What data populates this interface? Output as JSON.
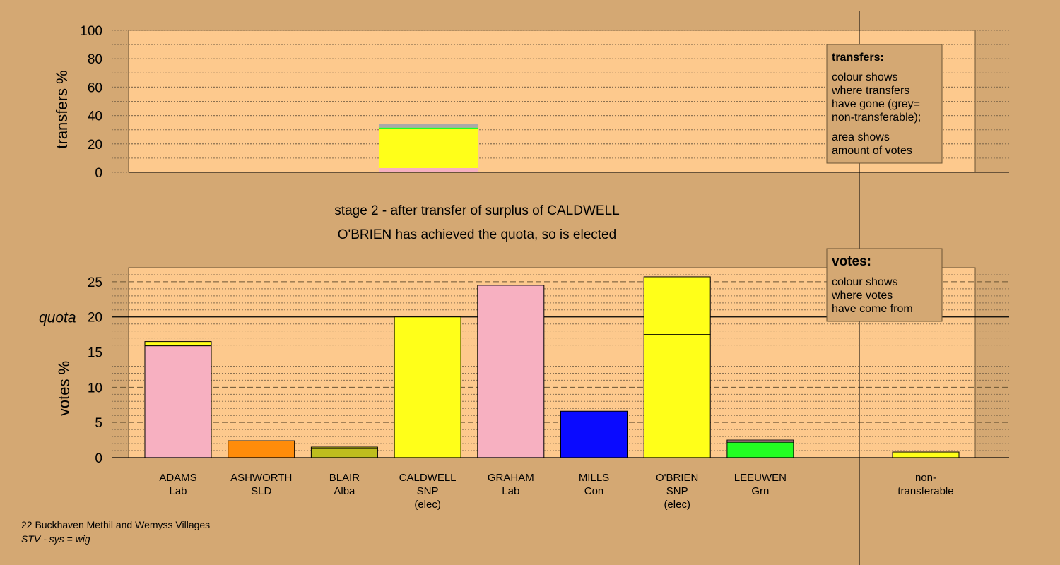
{
  "chart_data": [
    {
      "type": "bar",
      "title": "transfers",
      "ylabel": "transfers %",
      "ylim": [
        0,
        100
      ],
      "yticks": [
        0,
        20,
        40,
        60,
        80,
        100
      ],
      "grid": true,
      "bars": [
        {
          "category": "CALDWELL",
          "stack": [
            {
              "color": "#f7b0c1",
              "value": 3
            },
            {
              "color": "#ffff19",
              "value": 27.5
            },
            {
              "color": "#22ff22",
              "value": 1
            },
            {
              "color": "#aaaaaa",
              "value": 2.5
            }
          ]
        }
      ],
      "legend": {
        "title": "transfers:",
        "lines1": [
          "colour shows",
          "where transfers",
          "have gone (grey=",
          "non-transferable);"
        ],
        "lines2": [
          "area shows",
          "amount of votes"
        ]
      }
    },
    {
      "type": "bar",
      "title": "votes",
      "ylabel": "votes %",
      "ylim": [
        0,
        27
      ],
      "yticks": [
        0,
        5,
        10,
        15,
        20,
        25
      ],
      "quota": 20,
      "quota_label": "quota",
      "grid": true,
      "candidates": [
        {
          "name": "ADAMS",
          "party": "Lab",
          "note": "",
          "segments": [
            {
              "color": "#f7b0c1",
              "value": 15.9
            },
            {
              "color": "#ffff19",
              "value": 0.6
            }
          ]
        },
        {
          "name": "ASHWORTH",
          "party": "SLD",
          "note": "",
          "segments": [
            {
              "color": "#ff8c0a",
              "value": 2.4
            }
          ]
        },
        {
          "name": "BLAIR",
          "party": "Alba",
          "note": "",
          "segments": [
            {
              "color": "#bebe1e",
              "value": 1.3
            },
            {
              "color": "#ffff19",
              "value": 0.2
            }
          ]
        },
        {
          "name": "CALDWELL",
          "party": "SNP",
          "note": "(elec)",
          "segments": [
            {
              "color": "#ffff19",
              "value": 20.0
            }
          ]
        },
        {
          "name": "GRAHAM",
          "party": "Lab",
          "note": "",
          "segments": [
            {
              "color": "#f7b0c1",
              "value": 24.5
            }
          ]
        },
        {
          "name": "MILLS",
          "party": "Con",
          "note": "",
          "segments": [
            {
              "color": "#0a0aff",
              "value": 6.6
            }
          ]
        },
        {
          "name": "O'BRIEN",
          "party": "SNP",
          "note": "(elec)",
          "segments": [
            {
              "color": "#ffff19",
              "value": 17.5
            },
            {
              "color": "#ffff19",
              "value": 8.2
            }
          ]
        },
        {
          "name": "LEEUWEN",
          "party": "Grn",
          "note": "",
          "segments": [
            {
              "color": "#22ff22",
              "value": 2.2
            },
            {
              "color": "#f7b0c1",
              "value": 0.3
            }
          ]
        }
      ],
      "non_transferable": {
        "label1": "non-",
        "label2": "transferable",
        "value": 0.8,
        "color": "#ffff19"
      },
      "legend": {
        "title": "votes:",
        "lines": [
          "colour shows",
          "where votes",
          "have come from"
        ]
      }
    }
  ],
  "stage_title": "stage 2 - after transfer of surplus of CALDWELL",
  "stage_subtitle": "O'BRIEN has achieved the quota, so is elected",
  "footer": {
    "ward": "22 Buckhaven Methil and Wemyss Villages",
    "system": "STV - sys = wig"
  }
}
